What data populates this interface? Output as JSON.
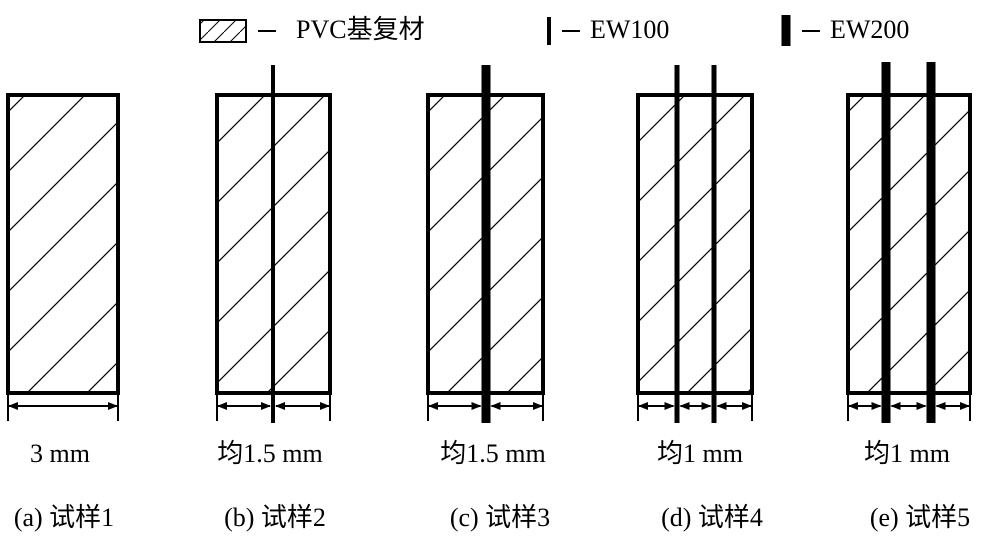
{
  "legend": {
    "items": [
      {
        "label": "PVC基复材"
      },
      {
        "label": "EW100"
      },
      {
        "label": "EW200"
      }
    ]
  },
  "panels": [
    {
      "dimension": "3 mm",
      "caption": "(a) 试样1"
    },
    {
      "dimension": "均1.5 mm",
      "caption": "(b) 试样2"
    },
    {
      "dimension": "均1.5 mm",
      "caption": "(c) 试样3"
    },
    {
      "dimension": "均1 mm",
      "caption": "(d) 试样4"
    },
    {
      "dimension": "均1 mm",
      "caption": "(e) 试样5"
    }
  ]
}
